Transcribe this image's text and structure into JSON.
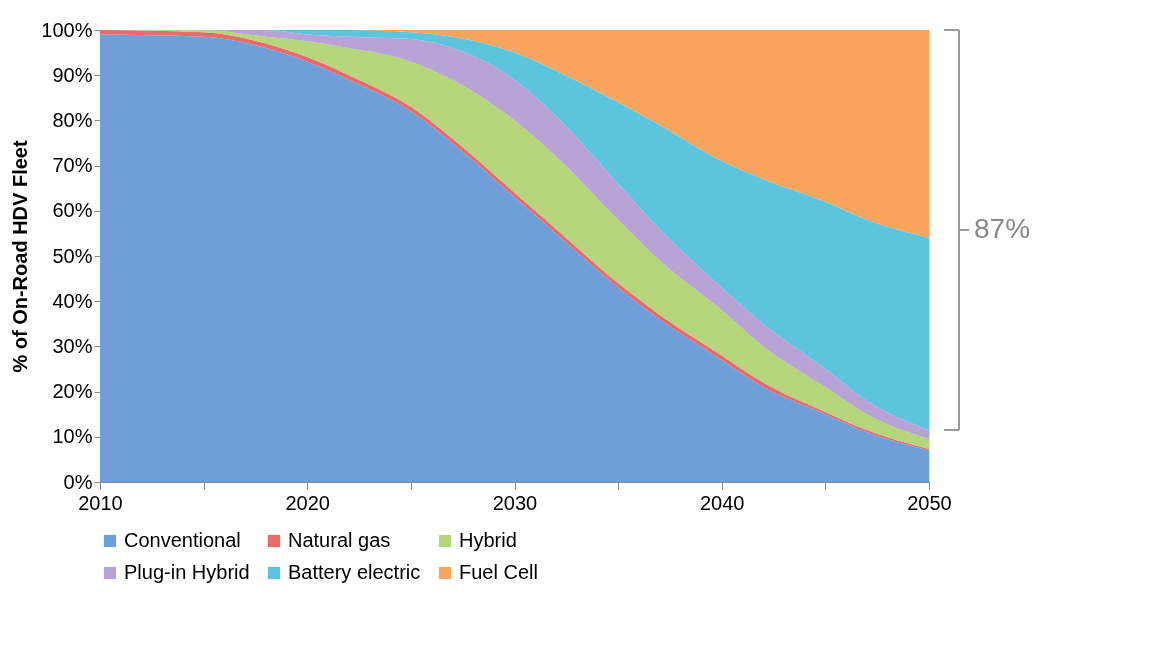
{
  "chart_data": {
    "type": "area",
    "stacked": true,
    "ylabel": "% of On-Road HDV Fleet",
    "x": [
      2010,
      2015,
      2018,
      2020,
      2022,
      2025,
      2027,
      2030,
      2032,
      2035,
      2037,
      2040,
      2042,
      2045,
      2047,
      2050
    ],
    "series": [
      {
        "name": "Conventional",
        "color": "#6f9fd8",
        "values": [
          99,
          98.5,
          96,
          93,
          89,
          82,
          75,
          63,
          55,
          43,
          36,
          27,
          21,
          15,
          11,
          7
        ]
      },
      {
        "name": "Natural gas",
        "color": "#e86a6a",
        "values": [
          1,
          1,
          1,
          1,
          1,
          1,
          1,
          1,
          1,
          1,
          1,
          1,
          1,
          0.5,
          0.5,
          0.3
        ]
      },
      {
        "name": "Hybrid",
        "color": "#b5d67a",
        "values": [
          0,
          0.5,
          1.5,
          3.5,
          6,
          10,
          13,
          16,
          16,
          14,
          12,
          10,
          8,
          5.5,
          3.5,
          2.2
        ]
      },
      {
        "name": "Plug-in Hybrid",
        "color": "#b8a3d6",
        "values": [
          0,
          0,
          1.5,
          1.5,
          2.5,
          5,
          7,
          9,
          9,
          8,
          7,
          5,
          5,
          4,
          3,
          2
        ]
      },
      {
        "name": "Battery electric",
        "color": "#5cc4dd",
        "values": [
          0,
          0,
          0,
          1,
          1.5,
          1.5,
          2.5,
          6,
          10,
          18,
          23,
          28,
          32,
          37,
          40,
          42.5
        ]
      },
      {
        "name": "Fuel Cell",
        "color": "#f9a55e",
        "values": [
          0,
          0,
          0,
          0,
          0,
          0.5,
          1.5,
          5,
          9,
          16,
          21,
          29,
          33,
          38,
          42,
          46
        ]
      }
    ],
    "xlim": [
      2010,
      2050
    ],
    "xticks": [
      2010,
      {
        "value": 2015,
        "label": null
      },
      2020,
      {
        "value": 2025,
        "label": null
      },
      2030,
      {
        "value": 2035,
        "label": null
      },
      2040,
      {
        "value": 2045,
        "label": null
      },
      2050
    ],
    "ylim": [
      0,
      100
    ],
    "yticks": [
      {
        "value": 0,
        "label": "0%"
      },
      {
        "value": 10,
        "label": "10%"
      },
      {
        "value": 20,
        "label": "20%"
      },
      {
        "value": 30,
        "label": "30%"
      },
      {
        "value": 40,
        "label": "40%"
      },
      {
        "value": 50,
        "label": "50%"
      },
      {
        "value": 60,
        "label": "60%"
      },
      {
        "value": 70,
        "label": "70%"
      },
      {
        "value": 80,
        "label": "80%"
      },
      {
        "value": 90,
        "label": "90%"
      },
      {
        "value": 100,
        "label": "100%"
      }
    ],
    "grid": false,
    "legend": "bottom",
    "annotations": [
      "87%"
    ]
  }
}
